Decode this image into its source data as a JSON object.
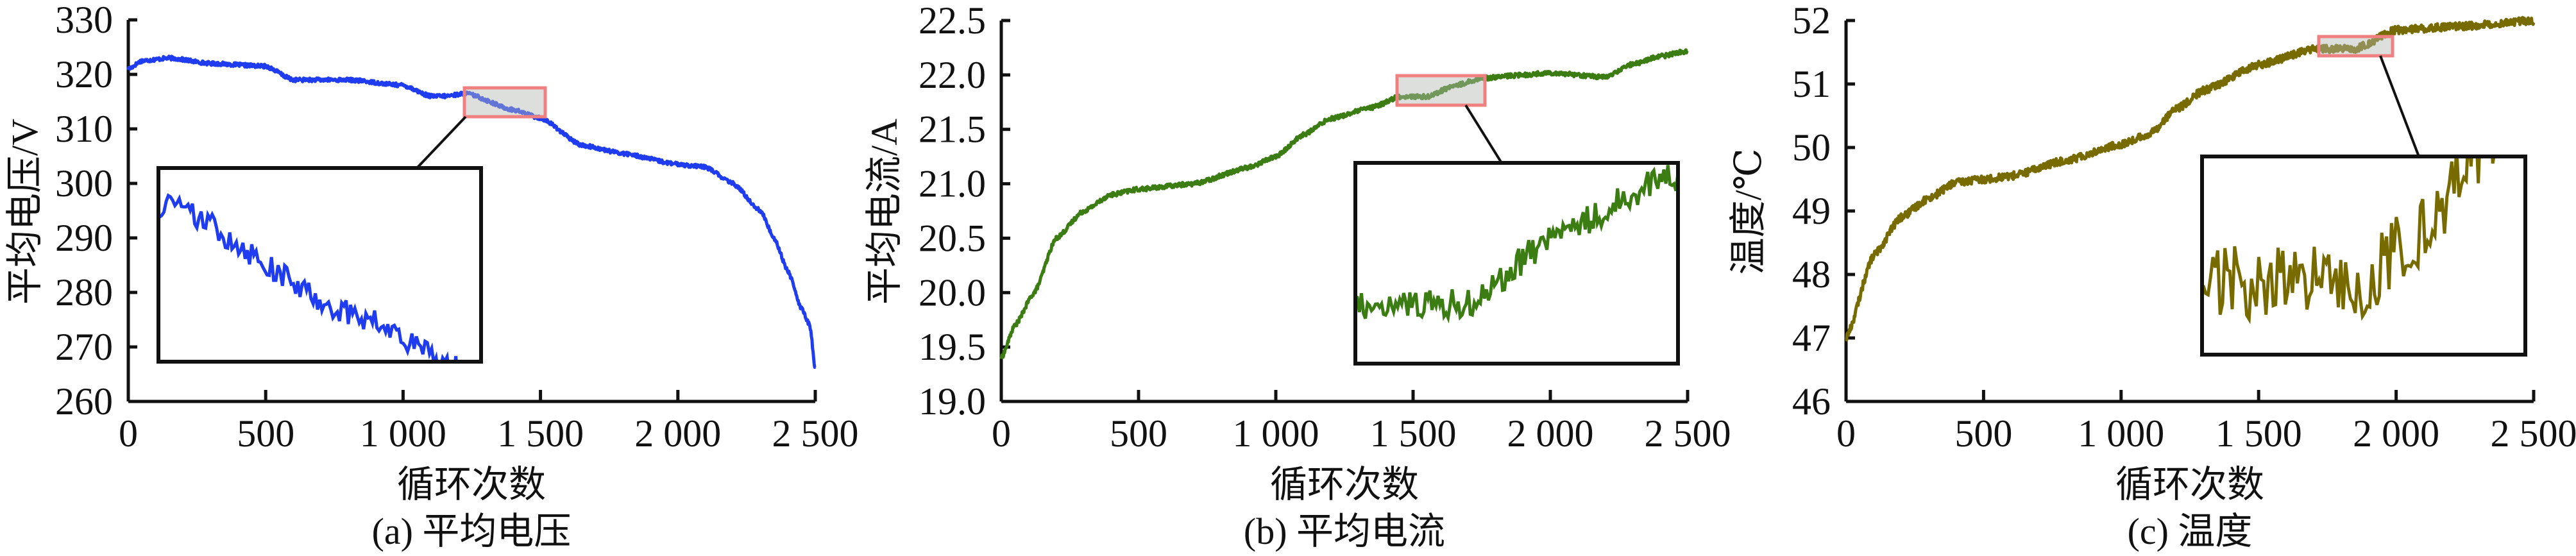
{
  "chart_data": [
    {
      "type": "line",
      "caption": "(a) 平均电压",
      "xlabel": "循环次数",
      "ylabel": "平均电压/V",
      "xlim": [
        0,
        2500
      ],
      "ylim": [
        260,
        330
      ],
      "xticks": [
        "0",
        "500",
        "1 000",
        "1 500",
        "2 000",
        "2 500"
      ],
      "xtick_values": [
        0,
        500,
        1000,
        1500,
        2000,
        2500
      ],
      "yticks": [
        "260",
        "270",
        "280",
        "290",
        "300",
        "310",
        "320",
        "330"
      ],
      "ytick_values": [
        260,
        270,
        280,
        290,
        300,
        310,
        320,
        330
      ],
      "color": "#1f3cf0",
      "noise": 0.35,
      "points": [
        [
          0,
          321
        ],
        [
          50,
          322.5
        ],
        [
          150,
          323
        ],
        [
          300,
          322
        ],
        [
          500,
          321.5
        ],
        [
          600,
          319
        ],
        [
          800,
          319
        ],
        [
          1000,
          318
        ],
        [
          1100,
          316
        ],
        [
          1150,
          316
        ],
        [
          1230,
          316.5
        ],
        [
          1400,
          313.5
        ],
        [
          1500,
          312
        ],
        [
          1650,
          307
        ],
        [
          1800,
          305.5
        ],
        [
          2000,
          303.5
        ],
        [
          2100,
          303
        ],
        [
          2200,
          300
        ],
        [
          2300,
          295
        ],
        [
          2350,
          290
        ],
        [
          2400,
          284
        ],
        [
          2450,
          277
        ],
        [
          2480,
          274
        ],
        [
          2500,
          266
        ]
      ],
      "inset": {
        "xrange": [
          1223,
          1517
        ],
        "yrange": [
          312.2,
          317.5
        ],
        "highlight": "#f08080"
      }
    },
    {
      "type": "line",
      "caption": "(b) 平均电流",
      "xlabel": "循环次数",
      "ylabel": "平均电流/A",
      "xlim": [
        0,
        2500
      ],
      "ylim": [
        19.0,
        22.5
      ],
      "xticks": [
        "0",
        "500",
        "1 000",
        "1 500",
        "2 000",
        "2 500"
      ],
      "xtick_values": [
        0,
        500,
        1000,
        1500,
        2000,
        2500
      ],
      "yticks": [
        "19.0",
        "19.5",
        "20.0",
        "20.5",
        "21.0",
        "21.5",
        "22.0",
        "22.5"
      ],
      "ytick_values": [
        19.0,
        19.5,
        20.0,
        20.5,
        21.0,
        21.5,
        22.0,
        22.5
      ],
      "color": "#3b7d12",
      "noise": 0.02,
      "points": [
        [
          0,
          19.4
        ],
        [
          50,
          19.7
        ],
        [
          120,
          20.0
        ],
        [
          200,
          20.5
        ],
        [
          300,
          20.75
        ],
        [
          400,
          20.9
        ],
        [
          500,
          20.95
        ],
        [
          700,
          21.0
        ],
        [
          900,
          21.15
        ],
        [
          1000,
          21.25
        ],
        [
          1100,
          21.45
        ],
        [
          1200,
          21.6
        ],
        [
          1350,
          21.7
        ],
        [
          1450,
          21.8
        ],
        [
          1550,
          21.8
        ],
        [
          1650,
          21.9
        ],
        [
          1750,
          21.97
        ],
        [
          1900,
          22.0
        ],
        [
          2000,
          22.02
        ],
        [
          2200,
          21.98
        ],
        [
          2300,
          22.1
        ],
        [
          2400,
          22.17
        ],
        [
          2500,
          22.22
        ]
      ],
      "inset": {
        "xrange": [
          1442,
          1762
        ],
        "yrange": [
          21.72,
          21.99
        ],
        "highlight": "#f08080"
      }
    },
    {
      "type": "line",
      "caption": "(c) 温度",
      "xlabel": "循环次数",
      "ylabel": "温度/℃",
      "xlim": [
        0,
        2500
      ],
      "ylim": [
        46,
        52
      ],
      "xticks": [
        "0",
        "500",
        "1 000",
        "1 500",
        "2 000",
        "2 500"
      ],
      "xtick_values": [
        0,
        500,
        1000,
        1500,
        2000,
        2500
      ],
      "yticks": [
        "46",
        "47",
        "48",
        "49",
        "50",
        "51",
        "52"
      ],
      "ytick_values": [
        46,
        47,
        48,
        49,
        50,
        51,
        52
      ],
      "color": "#776b00",
      "noise": 0.06,
      "points": [
        [
          0,
          47
        ],
        [
          100,
          48.3
        ],
        [
          200,
          48.9
        ],
        [
          300,
          49.2
        ],
        [
          400,
          49.45
        ],
        [
          500,
          49.5
        ],
        [
          600,
          49.55
        ],
        [
          800,
          49.8
        ],
        [
          1000,
          50.05
        ],
        [
          1100,
          50.2
        ],
        [
          1200,
          50.6
        ],
        [
          1300,
          50.9
        ],
        [
          1500,
          51.3
        ],
        [
          1700,
          51.55
        ],
        [
          1850,
          51.55
        ],
        [
          2000,
          51.85
        ],
        [
          2200,
          51.9
        ],
        [
          2500,
          52.0
        ]
      ],
      "inset": {
        "xrange": [
          1719,
          1987
        ],
        "yrange": [
          51.44,
          51.75
        ],
        "highlight": "#f08080"
      }
    }
  ]
}
